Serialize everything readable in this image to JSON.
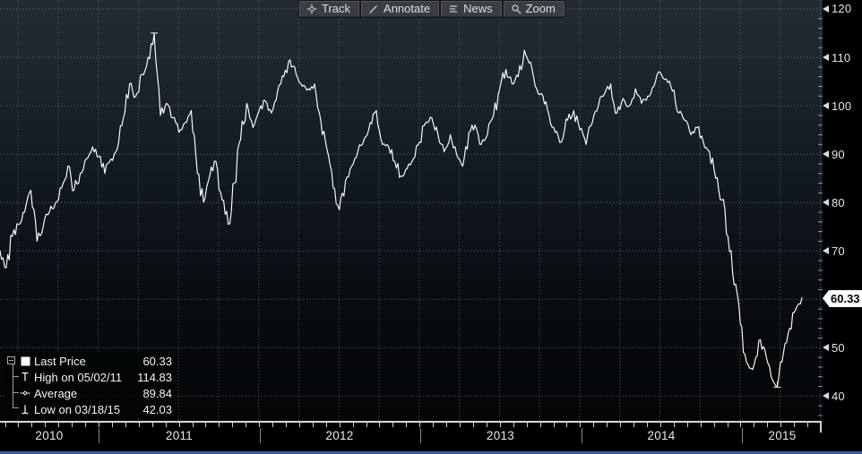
{
  "toolbar": {
    "buttons": [
      {
        "name": "track",
        "icon": "crosshair-icon",
        "label": "Track"
      },
      {
        "name": "annotate",
        "icon": "pencil-icon",
        "label": "Annotate"
      },
      {
        "name": "news",
        "icon": "news-lines-icon",
        "label": "News"
      },
      {
        "name": "zoom",
        "icon": "magnifier-icon",
        "label": "Zoom"
      }
    ]
  },
  "legend": {
    "items": [
      {
        "name": "last-price",
        "icon": "line-swatch",
        "label": "Last Price",
        "value": "60.33"
      },
      {
        "name": "high",
        "icon": "high-marker-icon",
        "label": "High on 05/02/11",
        "value": "114.83"
      },
      {
        "name": "average",
        "icon": "average-marker-icon",
        "label": "Average",
        "value": "89.84"
      },
      {
        "name": "low",
        "icon": "low-marker-icon",
        "label": "Low on 03/18/15",
        "value": "42.03"
      }
    ]
  },
  "y_axis": {
    "ticks": [
      40,
      50,
      60,
      70,
      80,
      90,
      100,
      110,
      120
    ],
    "minor_step": 2,
    "last_price_badge": "60.33"
  },
  "x_axis": {
    "year_labels": [
      "2010",
      "2011",
      "2012",
      "2013",
      "2014",
      "2015"
    ]
  },
  "chart_data": {
    "type": "line",
    "title": "",
    "xlabel": "",
    "ylabel": "",
    "x_years": [
      "2010",
      "2011",
      "2012",
      "2013",
      "2014",
      "2015"
    ],
    "x_start": "2010-05",
    "x_end": "2015-05",
    "interval": "biweekly",
    "ylim": [
      35,
      122
    ],
    "y_ticks": [
      40,
      50,
      60,
      70,
      80,
      90,
      100,
      110,
      120
    ],
    "grid": "dotted",
    "legend_position": "bottom-left",
    "stats": {
      "last_price": 60.33,
      "high": {
        "date": "05/02/11",
        "value": 114.83
      },
      "average": 89.84,
      "low": {
        "date": "03/18/15",
        "value": 42.03
      }
    },
    "series": [
      {
        "name": "Last Price",
        "color": "#ffffff",
        "values": [
          70,
          66.5,
          73,
          75.5,
          78,
          82.5,
          72,
          75,
          78,
          80,
          83,
          87.5,
          82.5,
          86,
          89,
          91.5,
          89.5,
          86,
          89,
          91,
          97.5,
          104.5,
          102,
          106.5,
          110,
          114.83,
          98,
          100.5,
          97.5,
          94.5,
          96.5,
          99,
          86,
          80,
          85.5,
          88.5,
          80.5,
          75.5,
          84,
          93,
          100.5,
          95.5,
          99,
          101,
          98.5,
          103,
          106,
          109.5,
          106.5,
          104,
          103.5,
          104.5,
          97,
          91,
          83,
          78.5,
          84.5,
          87.5,
          90.5,
          93,
          96.5,
          99,
          92,
          91.5,
          88.5,
          85.5,
          87,
          89,
          92.5,
          96.5,
          97.5,
          94,
          90.5,
          94,
          90,
          87.5,
          94.5,
          96,
          92,
          94,
          98,
          103.5,
          107.5,
          104.5,
          106,
          111.5,
          109,
          103.5,
          102,
          98,
          94.5,
          92.5,
          97,
          99,
          95,
          92,
          96.5,
          100,
          102.5,
          104.5,
          98.5,
          101.5,
          100,
          103.5,
          100.5,
          102,
          104,
          106.9,
          105.5,
          103,
          98.5,
          97,
          94,
          95.5,
          92.5,
          90.5,
          85,
          80.5,
          73,
          63,
          55,
          47,
          45.5,
          51.5,
          49.5,
          44,
          42.03,
          49,
          54,
          58,
          60.33
        ]
      }
    ]
  },
  "colors": {
    "background": "#000000",
    "plot_top": "#232c35",
    "plot_bottom": "#030507",
    "grid": "#60676d",
    "line": "#ffffff",
    "accent_bar": "#32619e",
    "badge_bg": "#ffffff",
    "badge_text": "#000000",
    "axis_text": "#e2e5e7"
  }
}
